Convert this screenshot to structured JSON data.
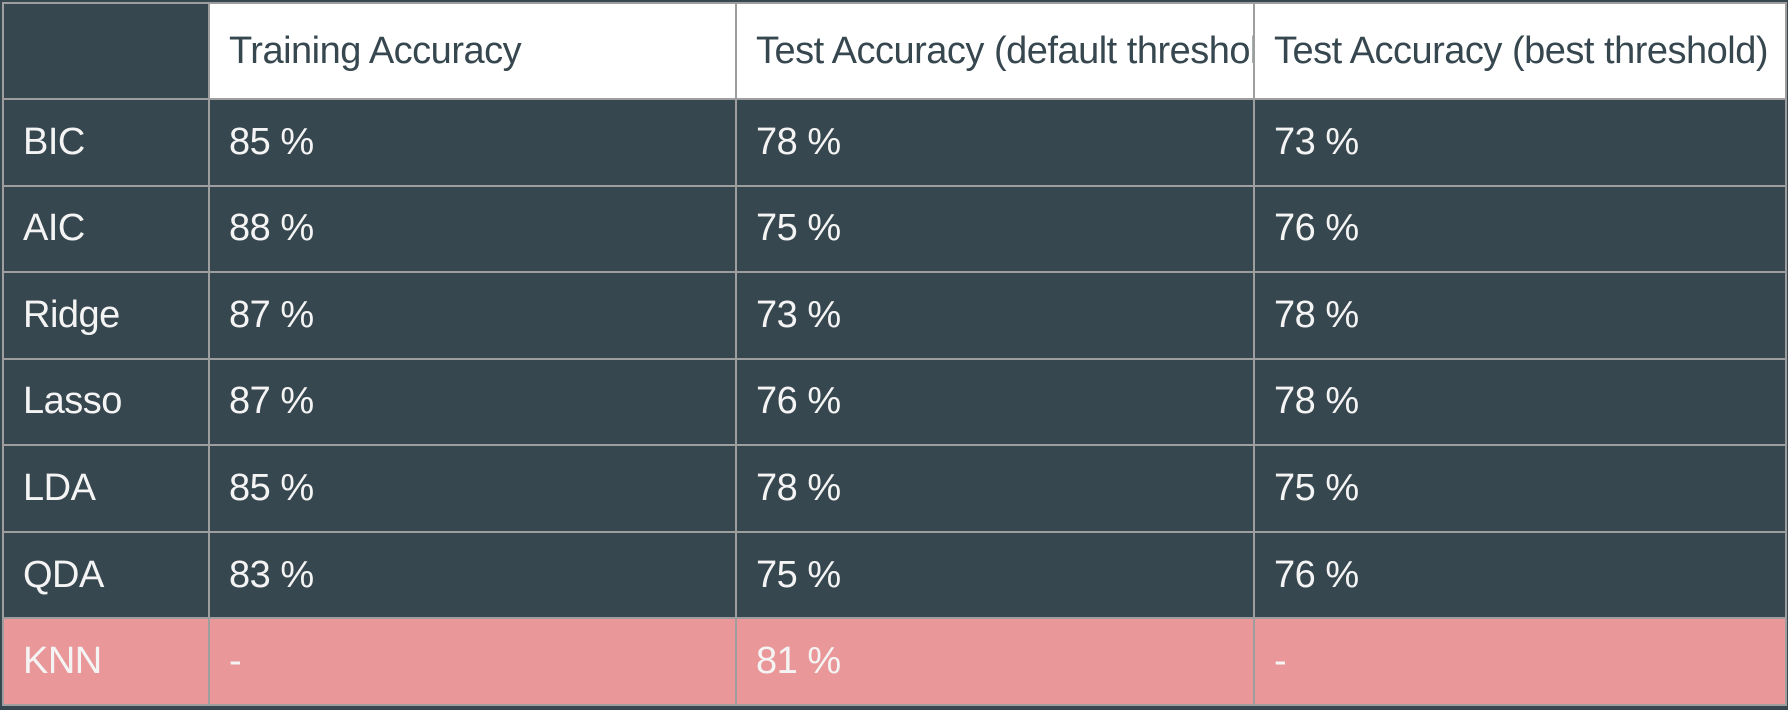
{
  "table": {
    "columns": [
      "",
      "Training Accuracy",
      "Test Accuracy (default threshold)",
      "Test Accuracy (best threshold)"
    ],
    "rows": [
      {
        "model": "BIC",
        "training": "85 %",
        "test_default": "78 %",
        "test_best": "73 %"
      },
      {
        "model": "AIC",
        "training": "88 %",
        "test_default": "75 %",
        "test_best": "76 %"
      },
      {
        "model": "Ridge",
        "training": "87 %",
        "test_default": "73 %",
        "test_best": "78 %"
      },
      {
        "model": "Lasso",
        "training": "87 %",
        "test_default": "76 %",
        "test_best": "78 %"
      },
      {
        "model": "LDA",
        "training": "85 %",
        "test_default": "78 %",
        "test_best": "75 %"
      },
      {
        "model": "QDA",
        "training": "83 %",
        "test_default": "75 %",
        "test_best": "76 %"
      },
      {
        "model": "KNN",
        "training": "-",
        "test_default": "81 %",
        "test_best": "-"
      }
    ],
    "highlighted_row": "KNN"
  },
  "colors": {
    "background": "#37474f",
    "header_background": "#ffffff",
    "header_text": "#37474f",
    "body_text": "#f4f4f4",
    "highlight_row": "#e99798",
    "grid_lines": "#9e9e9e"
  }
}
